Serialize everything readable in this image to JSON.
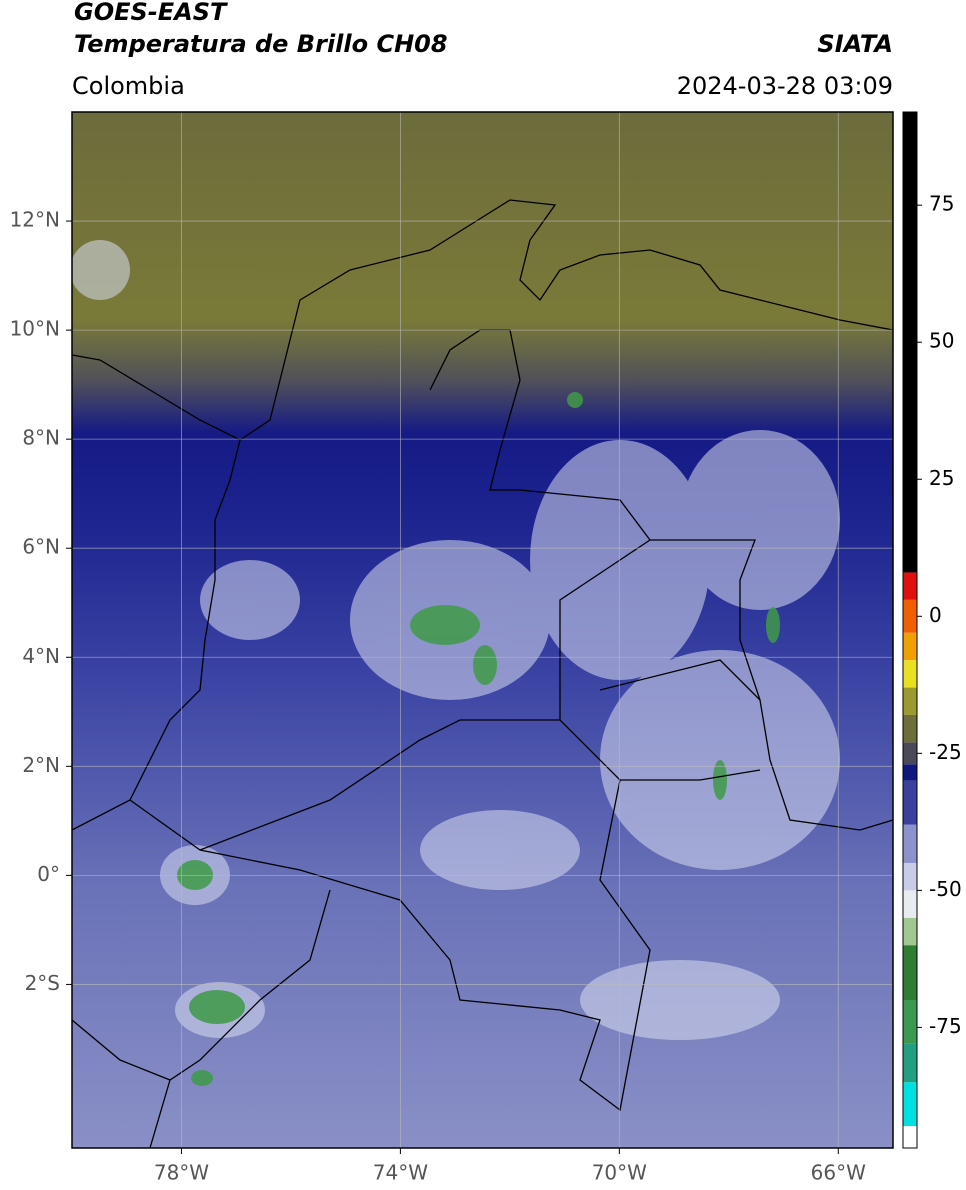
{
  "header": {
    "title": "GOES-EAST",
    "subtitle": "Temperatura de Brillo CH08",
    "source": "SIATA",
    "region": "Colombia",
    "datetime": "2024-03-28 03:09"
  },
  "map": {
    "lonlim": [
      -80,
      -65
    ],
    "latlim": [
      -5,
      14
    ],
    "lonticks": [
      {
        "value": -78,
        "label": "78°W"
      },
      {
        "value": -74,
        "label": "74°W"
      },
      {
        "value": -70,
        "label": "70°W"
      },
      {
        "value": -66,
        "label": "66°W"
      }
    ],
    "latticks": [
      {
        "value": 12,
        "label": "12°N"
      },
      {
        "value": 10,
        "label": "10°N"
      },
      {
        "value": 8,
        "label": "8°N"
      },
      {
        "value": 6,
        "label": "6°N"
      },
      {
        "value": 4,
        "label": "4°N"
      },
      {
        "value": 2,
        "label": "2°N"
      },
      {
        "value": 0,
        "label": "0°"
      },
      {
        "value": -2,
        "label": "2°S"
      }
    ],
    "grid": true
  },
  "colorbar": {
    "lim": [
      -97,
      92
    ],
    "ticks": [
      75,
      50,
      25,
      0,
      -25,
      -50,
      -75
    ],
    "levels": [
      -97,
      -93,
      -85,
      -78,
      -70,
      -60,
      -55,
      -50,
      -45,
      -38,
      -30,
      -27,
      -23,
      -18,
      -13,
      -8,
      -3,
      3,
      8,
      92
    ],
    "colors": [
      "#ffffff",
      "#00e0e0",
      "#20a080",
      "#3a9a50",
      "#2e7d32",
      "#a0c890",
      "#e8ecf0",
      "#c8cce8",
      "#8c92cc",
      "#3a40a0",
      "#101880",
      "#4a4a5a",
      "#6e6e3a",
      "#9a9a30",
      "#e8e020",
      "#f0a000",
      "#f06000",
      "#e01010",
      "#000000"
    ]
  }
}
